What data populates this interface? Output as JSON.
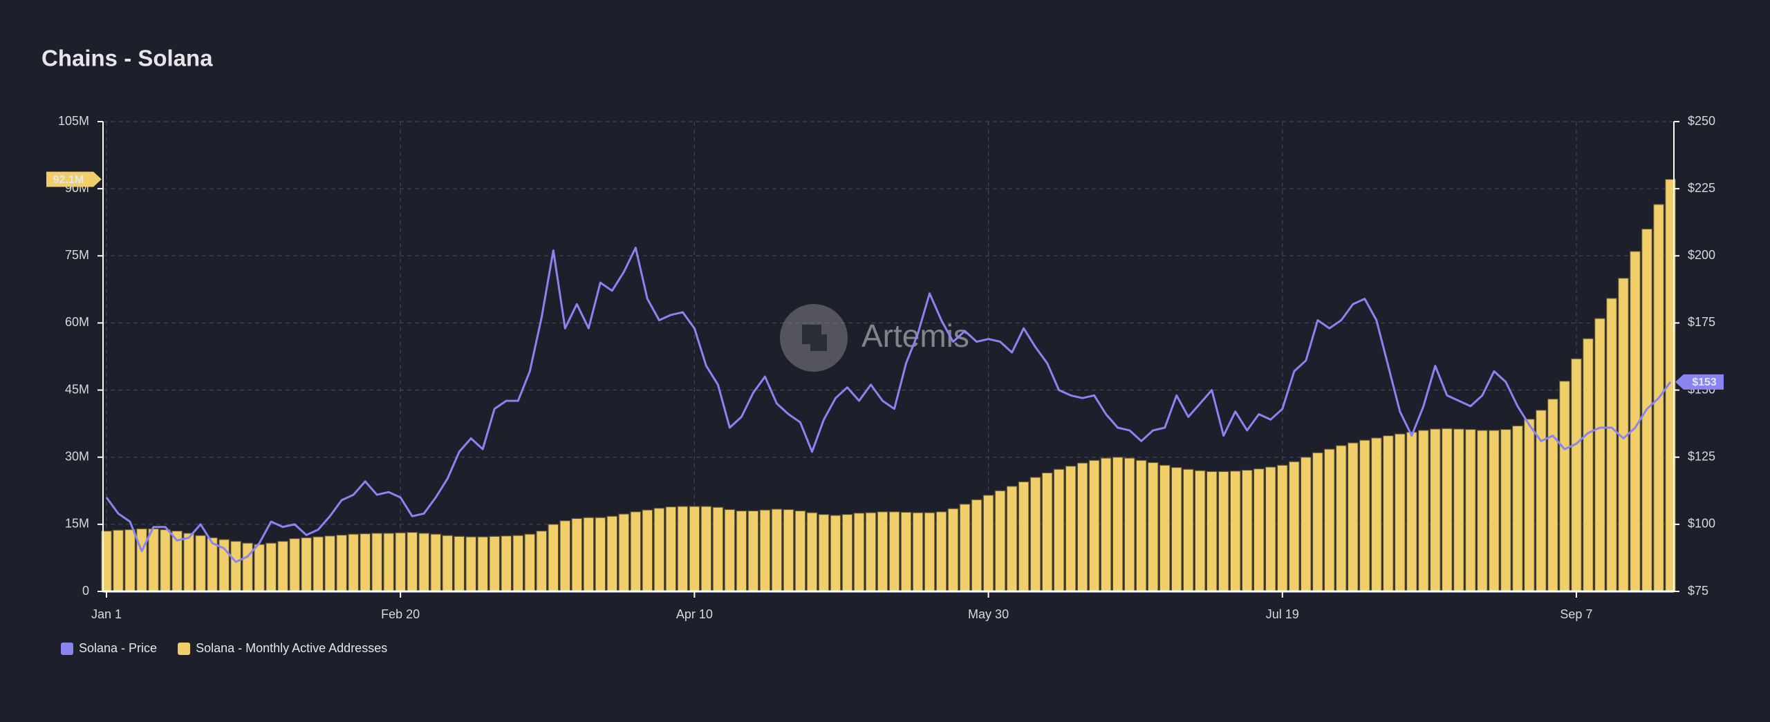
{
  "chart_data": {
    "type": "combo",
    "title": "Chains - Solana",
    "watermark": "Artemis",
    "categories": [
      "Jan 1",
      null,
      null,
      null,
      null,
      null,
      null,
      null,
      null,
      null,
      null,
      null,
      null,
      null,
      null,
      null,
      null,
      null,
      null,
      null,
      null,
      null,
      null,
      null,
      null,
      "Feb 20",
      null,
      null,
      null,
      null,
      null,
      null,
      null,
      null,
      null,
      null,
      null,
      null,
      null,
      null,
      null,
      null,
      null,
      null,
      null,
      null,
      null,
      null,
      null,
      null,
      "Apr 10",
      null,
      null,
      null,
      null,
      null,
      null,
      null,
      null,
      null,
      null,
      null,
      null,
      null,
      null,
      null,
      null,
      null,
      null,
      null,
      null,
      null,
      null,
      null,
      null,
      "May 30",
      null,
      null,
      null,
      null,
      null,
      null,
      null,
      null,
      null,
      null,
      null,
      null,
      null,
      null,
      null,
      null,
      null,
      null,
      null,
      null,
      null,
      null,
      null,
      null,
      "Jul 19",
      null,
      null,
      null,
      null,
      null,
      null,
      null,
      null,
      null,
      null,
      null,
      null,
      null,
      null,
      null,
      null,
      null,
      null,
      null,
      null,
      null,
      null,
      null,
      null,
      "Sep 7",
      null,
      null,
      null,
      null,
      null,
      null,
      null,
      null
    ],
    "series": [
      {
        "name": "Solana - Price",
        "type": "line",
        "axis": "y2",
        "color": "#8a84f0",
        "end_label": "$153",
        "values": [
          110,
          104,
          101,
          90,
          99,
          99,
          94,
          95,
          100,
          93,
          91,
          86,
          88,
          93,
          101,
          99,
          100,
          96,
          98,
          103,
          109,
          111,
          116,
          111,
          112,
          110,
          103,
          104,
          110,
          117,
          127,
          132,
          128,
          143,
          146,
          146,
          157,
          177,
          202,
          173,
          182,
          173,
          190,
          187,
          194,
          203,
          184,
          176,
          178,
          179,
          173,
          159,
          152,
          136,
          140,
          149,
          155,
          145,
          141,
          138,
          127,
          139,
          147,
          151,
          146,
          152,
          146,
          143,
          160,
          171,
          186,
          176,
          168,
          172,
          168,
          169,
          168,
          164,
          173,
          166,
          160,
          150,
          148,
          147,
          148,
          141,
          136,
          135,
          131,
          135,
          136,
          148,
          140,
          145,
          150,
          133,
          142,
          135,
          141,
          139,
          143,
          157,
          161,
          176,
          173,
          176,
          182,
          184,
          176,
          159,
          142,
          133,
          144,
          159,
          148,
          146,
          144,
          148,
          157,
          153,
          144,
          137,
          131,
          133,
          128,
          130,
          134,
          136,
          136,
          132,
          136,
          143,
          147,
          153
        ]
      },
      {
        "name": "Solana - Monthly Active Addresses",
        "type": "bar",
        "axis": "y",
        "color": "#f0cf6b",
        "end_label": "92.1M",
        "values": [
          13.5,
          13.7,
          13.8,
          14,
          14,
          13.8,
          13.5,
          13,
          12.5,
          12,
          11.6,
          11.2,
          10.8,
          10.5,
          10.8,
          11.2,
          11.8,
          12,
          12.2,
          12.4,
          12.6,
          12.8,
          12.9,
          13,
          13,
          13.1,
          13.2,
          13,
          12.8,
          12.5,
          12.3,
          12.2,
          12.2,
          12.3,
          12.4,
          12.5,
          12.8,
          13.5,
          15,
          15.8,
          16.3,
          16.5,
          16.5,
          16.8,
          17.3,
          17.8,
          18.2,
          18.6,
          18.9,
          19,
          19,
          19,
          18.8,
          18.3,
          18,
          18,
          18.2,
          18.4,
          18.3,
          18,
          17.6,
          17.2,
          17,
          17.2,
          17.5,
          17.6,
          17.8,
          17.8,
          17.7,
          17.6,
          17.6,
          17.8,
          18.5,
          19.5,
          20.5,
          21.5,
          22.5,
          23.5,
          24.5,
          25.5,
          26.5,
          27.3,
          28,
          28.7,
          29.3,
          29.8,
          30,
          29.8,
          29.3,
          28.8,
          28.2,
          27.7,
          27.3,
          27,
          26.8,
          26.8,
          26.9,
          27.1,
          27.4,
          27.8,
          28.2,
          29,
          30,
          31,
          31.8,
          32.6,
          33.2,
          33.8,
          34.3,
          34.8,
          35.2,
          35.6,
          36,
          36.3,
          36.4,
          36.3,
          36.2,
          36,
          36,
          36.2,
          37,
          38.5,
          40.5,
          43,
          47,
          52,
          56.5,
          61,
          65.5,
          70,
          76,
          81,
          86.5,
          92.1
        ]
      }
    ],
    "ylim": [
      0,
      105
    ],
    "yticks": [
      0,
      {
        "value": 15,
        "label": "15M"
      },
      {
        "value": 30,
        "label": "30M"
      },
      {
        "value": 45,
        "label": "45M"
      },
      {
        "value": 60,
        "label": "60M"
      },
      {
        "value": 75,
        "label": "75M"
      },
      {
        "value": 90,
        "label": "90M"
      },
      {
        "value": 105,
        "label": "105M"
      }
    ],
    "y2lim": [
      75,
      250
    ],
    "y2ticks": [
      {
        "value": 75,
        "label": "$75"
      },
      {
        "value": 100,
        "label": "$100"
      },
      {
        "value": 125,
        "label": "$125"
      },
      {
        "value": 150,
        "label": "$150"
      },
      {
        "value": 175,
        "label": "$175"
      },
      {
        "value": 200,
        "label": "$200"
      },
      {
        "value": 225,
        "label": "$225"
      },
      {
        "value": 250,
        "label": "$250"
      }
    ],
    "grid": true,
    "legend": "bottom-left"
  }
}
